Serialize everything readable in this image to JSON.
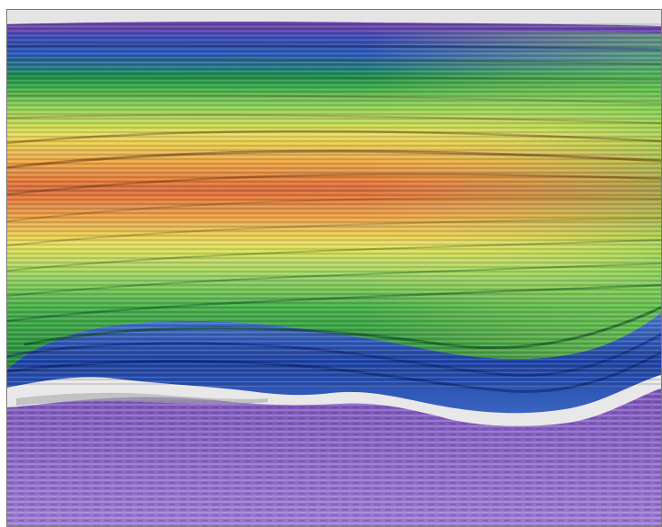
{
  "figure": {
    "kind": "seismic-section",
    "has_text": false,
    "colormap": [
      "#e3e3e3",
      "#6a48b0",
      "#2244a8",
      "#1e9a3a",
      "#7fd05a",
      "#e8e05a",
      "#f0a848",
      "#e4703e"
    ],
    "horizon_colors": {
      "top": "#6a48b0",
      "upper": "#2244a8",
      "base_fill": "#1e9a3a",
      "lower": "#2850b0",
      "basement": "#e8e8e8",
      "deep": "#8a66c4"
    }
  }
}
